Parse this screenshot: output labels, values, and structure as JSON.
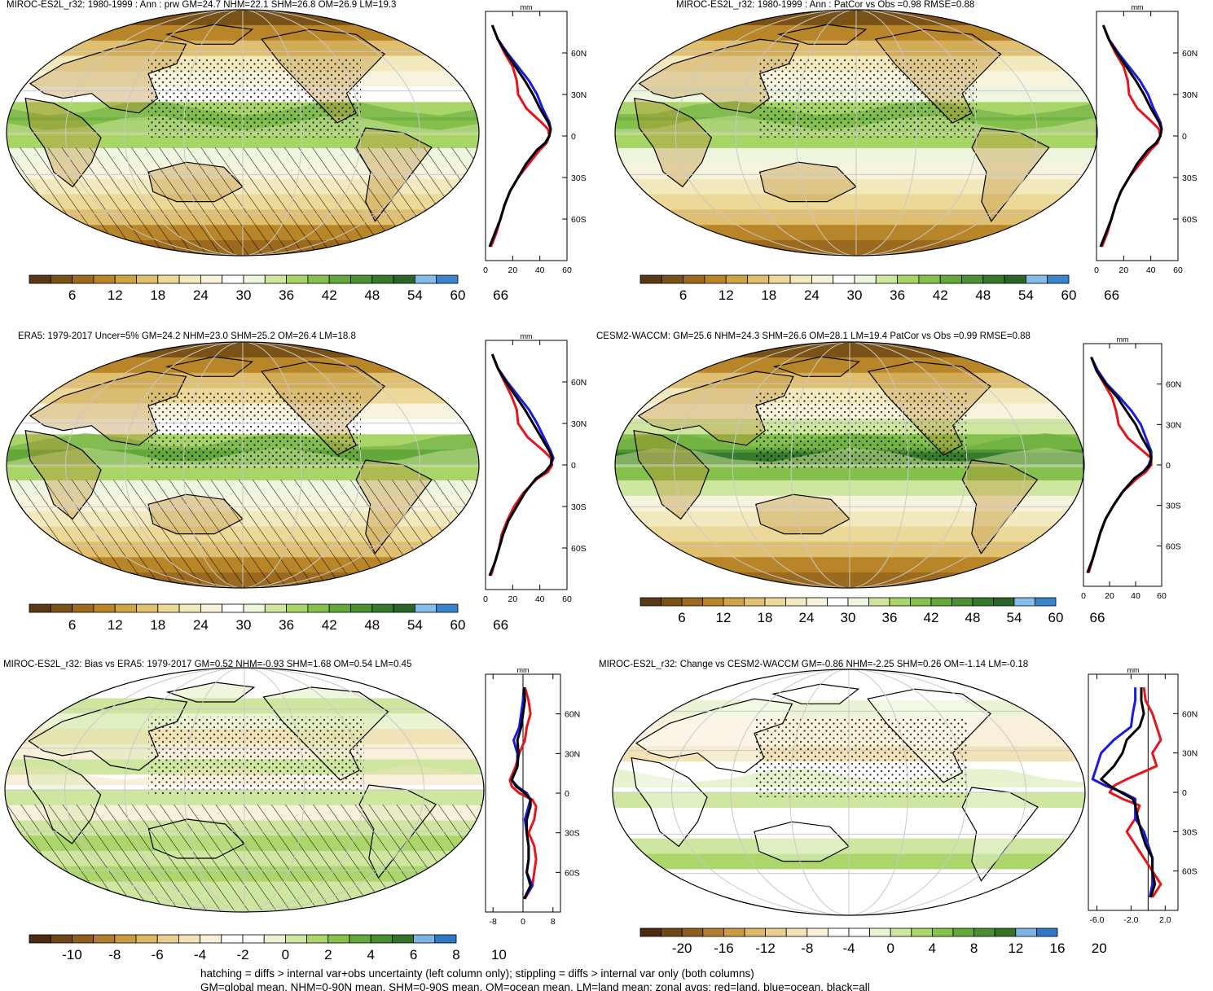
{
  "panels": [
    {
      "title": "MIROC-ES2L_r32: 1980-1999 : Ann : prw GM=24.7 NHM=22.1 SHM=26.8 OM=26.9 LM=19.3",
      "colorbar": {
        "labels": [
          "6",
          "12",
          "18",
          "24",
          "30",
          "36",
          "42",
          "48",
          "54",
          "60",
          "66"
        ]
      },
      "zonal": {
        "unit": "mm",
        "ylabels": [
          "60N",
          "30N",
          "0",
          "30S",
          "60S"
        ],
        "xlabels": [
          "0",
          "20",
          "40",
          "60"
        ]
      }
    },
    {
      "title": "MIROC-ES2L_r32: 1980-1999 : Ann : PatCor vs Obs =0.98 RMSE=0.88",
      "colorbar": {
        "labels": [
          "6",
          "12",
          "18",
          "24",
          "30",
          "36",
          "42",
          "48",
          "54",
          "60",
          "66"
        ]
      },
      "zonal": {
        "unit": "mm",
        "ylabels": [
          "60N",
          "30N",
          "0",
          "30S",
          "60S"
        ],
        "xlabels": [
          "0",
          "20",
          "40",
          "60"
        ]
      }
    },
    {
      "title": "ERA5: 1979-2017 Uncer=5% GM=24.2 NHM=23.0 SHM=25.2 OM=26.4 LM=18.8",
      "colorbar": {
        "labels": [
          "6",
          "12",
          "18",
          "24",
          "30",
          "36",
          "42",
          "48",
          "54",
          "60",
          "66"
        ]
      },
      "zonal": {
        "unit": "mm",
        "ylabels": [
          "60N",
          "30N",
          "0",
          "30S",
          "60S"
        ],
        "xlabels": [
          "0",
          "20",
          "40",
          "60"
        ]
      }
    },
    {
      "title": "CESM2-WACCM: GM=25.6 NHM=24.3 SHM=26.6 OM=28.1 LM=19.4 PatCor vs Obs =0.99 RMSE=0.88",
      "colorbar": {
        "labels": [
          "6",
          "12",
          "18",
          "24",
          "30",
          "36",
          "42",
          "48",
          "54",
          "60",
          "66"
        ]
      },
      "zonal": {
        "unit": "mm",
        "ylabels": [
          "60N",
          "30N",
          "0",
          "30S",
          "60S"
        ],
        "xlabels": [
          "0",
          "20",
          "40",
          "60"
        ]
      }
    },
    {
      "title": "MIROC-ES2L_r32: Bias vs ERA5: 1979-2017 GM=0.52 NHM=-0.93 SHM=1.68 OM=0.54 LM=0.45",
      "colorbar": {
        "labels": [
          "-10",
          "-8",
          "-6",
          "-4",
          "-2",
          "0",
          "2",
          "4",
          "6",
          "8",
          "10"
        ]
      },
      "zonal": {
        "unit": "mm",
        "ylabels": [
          "60N",
          "30N",
          "0",
          "30S",
          "60S"
        ],
        "xlabels": [
          "-8",
          "0",
          "8"
        ]
      }
    },
    {
      "title": "MIROC-ES2L_r32: Change vs CESM2-WACCM GM=-0.86 NHM=-2.25 SHM=0.26 OM=-1.14 LM=-0.18",
      "colorbar": {
        "labels": [
          "-20",
          "-16",
          "-12",
          "-8",
          "-4",
          "0",
          "4",
          "8",
          "12",
          "16",
          "20"
        ]
      },
      "zonal": {
        "unit": "mm",
        "ylabels": [
          "60N",
          "30N",
          "0",
          "30S",
          "60S"
        ],
        "xlabels": [
          "-6.0",
          "-2.0",
          "2.0"
        ]
      }
    }
  ],
  "footer": [
    "hatching = diffs > internal var+obs uncertainty (left column only); stippling = diffs > internal var only (both columns)",
    "GM=global mean, NHM=0-90N mean, SHM=0-90S mean, OM=ocean mean, LM=land mean; zonal avgs: red=land, blue=ocean, black=all"
  ],
  "colors": {
    "land": "#e8141c",
    "ocean": "#1a1ae6",
    "all": "#000000",
    "abs_scale": [
      "#5a3a14",
      "#7a5218",
      "#9b6a1e",
      "#b88628",
      "#cfa446",
      "#e0c070",
      "#ecd898",
      "#f3e9be",
      "#f8f3dc",
      "#ffffff",
      "#eef6e0",
      "#cfe6a0",
      "#a8d468",
      "#84c04c",
      "#64a83c",
      "#4c9034",
      "#387a2c",
      "#2a6426",
      "#85bce8",
      "#3a84cc"
    ],
    "diff_scale": [
      "#4a2c0e",
      "#6e4618",
      "#8e5e20",
      "#b07e2e",
      "#c99c44",
      "#dcb868",
      "#e8cf90",
      "#f1e2b8",
      "#f8f0da",
      "#ffffff",
      "#ffffff",
      "#eaf4d4",
      "#cfe6a0",
      "#acd66c",
      "#86c24c",
      "#64a83c",
      "#4a8e32",
      "#347428",
      "#7cb4e6",
      "#2e78c6"
    ]
  },
  "chart_data": [
    {
      "type": "line",
      "title": "MIROC-ES2L_r32: 1980-1999 : Ann : prw GM=24.7 NHM=22.1 SHM=26.8 OM=26.9 LM=19.3",
      "xlabel": "mm",
      "ylabel": "",
      "xlim": [
        0,
        60
      ],
      "ylim": [
        -90,
        90
      ],
      "y": [
        80,
        70,
        60,
        50,
        40,
        30,
        20,
        10,
        5,
        0,
        -5,
        -10,
        -20,
        -30,
        -40,
        -50,
        -60,
        -70,
        -80
      ],
      "series": [
        {
          "values": [
            5,
            9,
            14,
            20,
            23,
            24,
            30,
            41,
            46,
            47,
            45,
            40,
            32,
            24,
            18,
            14,
            11,
            8,
            4
          ]
        },
        {
          "values": [
            5,
            9,
            16,
            24,
            32,
            38,
            42,
            47,
            48,
            47,
            44,
            38,
            30,
            24,
            18,
            14,
            11,
            7,
            3
          ]
        },
        {
          "values": [
            5,
            9,
            15,
            22,
            29,
            35,
            40,
            46,
            48,
            47,
            44,
            38,
            30,
            24,
            18,
            14,
            11,
            7,
            3
          ]
        }
      ]
    },
    {
      "type": "line",
      "title": "MIROC-ES2L_r32: 1980-1999 : Ann : PatCor vs Obs =0.98 RMSE=0.88",
      "xlabel": "mm",
      "ylabel": "",
      "xlim": [
        0,
        60
      ],
      "ylim": [
        -90,
        90
      ],
      "y": [
        80,
        70,
        60,
        50,
        40,
        30,
        20,
        10,
        5,
        0,
        -5,
        -10,
        -20,
        -30,
        -40,
        -50,
        -60,
        -70,
        -80
      ],
      "series": [
        {
          "values": [
            5,
            9,
            14,
            20,
            23,
            24,
            30,
            41,
            46,
            47,
            45,
            40,
            32,
            24,
            18,
            14,
            11,
            8,
            4
          ]
        },
        {
          "values": [
            5,
            9,
            16,
            24,
            32,
            38,
            42,
            47,
            48,
            47,
            44,
            38,
            30,
            24,
            18,
            14,
            11,
            7,
            3
          ]
        },
        {
          "values": [
            5,
            9,
            15,
            22,
            29,
            35,
            40,
            46,
            48,
            47,
            44,
            38,
            30,
            24,
            18,
            14,
            11,
            7,
            3
          ]
        }
      ]
    },
    {
      "type": "line",
      "title": "ERA5: 1979-2017 Uncer=5% GM=24.2 NHM=23.0 SHM=25.2 OM=26.4 LM=18.8",
      "xlabel": "mm",
      "ylabel": "",
      "xlim": [
        0,
        60
      ],
      "ylim": [
        -90,
        90
      ],
      "y": [
        80,
        70,
        60,
        50,
        40,
        30,
        20,
        10,
        5,
        0,
        -5,
        -10,
        -20,
        -30,
        -40,
        -50,
        -60,
        -70,
        -80
      ],
      "series": [
        {
          "values": [
            5,
            9,
            14,
            19,
            23,
            24,
            31,
            43,
            48,
            49,
            46,
            38,
            28,
            21,
            16,
            12,
            10,
            7,
            4
          ]
        },
        {
          "values": [
            5,
            9,
            16,
            24,
            32,
            38,
            43,
            48,
            50,
            48,
            44,
            37,
            29,
            23,
            17,
            13,
            10,
            7,
            3
          ]
        },
        {
          "values": [
            5,
            9,
            15,
            22,
            29,
            35,
            41,
            47,
            49,
            48,
            44,
            37,
            29,
            23,
            17,
            13,
            10,
            7,
            3
          ]
        }
      ]
    },
    {
      "type": "line",
      "title": "CESM2-WACCM: GM=25.6 NHM=24.3 SHM=26.6 OM=28.1 LM=19.4 PatCor vs Obs =0.99 RMSE=0.88",
      "xlabel": "mm",
      "ylabel": "",
      "xlim": [
        0,
        60
      ],
      "ylim": [
        -90,
        90
      ],
      "y": [
        80,
        70,
        60,
        50,
        40,
        30,
        20,
        10,
        5,
        0,
        -5,
        -10,
        -20,
        -30,
        -40,
        -50,
        -60,
        -70,
        -80
      ],
      "series": [
        {
          "values": [
            6,
            10,
            16,
            22,
            25,
            27,
            34,
            46,
            52,
            52,
            48,
            41,
            30,
            23,
            17,
            13,
            10,
            7,
            4
          ]
        },
        {
          "values": [
            6,
            11,
            18,
            28,
            37,
            44,
            48,
            52,
            52,
            50,
            46,
            39,
            30,
            23,
            17,
            13,
            10,
            7,
            3
          ]
        },
        {
          "values": [
            6,
            10,
            17,
            26,
            33,
            40,
            45,
            51,
            52,
            51,
            46,
            39,
            30,
            23,
            17,
            13,
            10,
            7,
            3
          ]
        }
      ]
    },
    {
      "type": "line",
      "title": "MIROC-ES2L_r32: Bias vs ERA5: 1979-2017 GM=0.52 NHM=-0.93 SHM=1.68 OM=0.54 LM=0.45",
      "xlabel": "mm",
      "ylabel": "",
      "xlim": [
        -10,
        10
      ],
      "ylim": [
        -90,
        90
      ],
      "y": [
        80,
        70,
        60,
        50,
        40,
        30,
        20,
        10,
        5,
        0,
        -5,
        -10,
        -20,
        -30,
        -40,
        -50,
        -60,
        -70,
        -80
      ],
      "series": [
        {
          "values": [
            0.5,
            1.5,
            2.0,
            1.0,
            0.5,
            -1.0,
            -2.0,
            -3.5,
            -3.0,
            -1.0,
            2.5,
            3.5,
            3.0,
            1.5,
            3.0,
            3.5,
            3.0,
            2.5,
            0.5
          ]
        },
        {
          "values": [
            0.2,
            0.0,
            -0.5,
            -1.0,
            -2.5,
            -1.5,
            -1.5,
            -3.0,
            -1.5,
            1.0,
            2.0,
            1.5,
            0.5,
            1.0,
            1.5,
            1.5,
            1.0,
            2.5,
            0.3
          ]
        },
        {
          "values": [
            0.3,
            0.5,
            0.0,
            -0.5,
            -1.5,
            -1.2,
            -1.5,
            -3.0,
            -1.8,
            0.5,
            2.0,
            2.0,
            1.0,
            1.0,
            1.5,
            1.5,
            1.0,
            2.0,
            0.3
          ]
        }
      ]
    },
    {
      "type": "line",
      "title": "MIROC-ES2L_r32: Change vs CESM2-WACCM GM=-0.86 NHM=-2.25 SHM=0.26 OM=-1.14 LM=-0.18",
      "xlabel": "mm",
      "ylabel": "",
      "xlim": [
        -7,
        3.5
      ],
      "ylim": [
        -90,
        90
      ],
      "y": [
        80,
        70,
        60,
        50,
        40,
        30,
        20,
        10,
        5,
        0,
        -5,
        -10,
        -20,
        -30,
        -40,
        -50,
        -60,
        -70,
        -80
      ],
      "series": [
        {
          "values": [
            -0.5,
            -0.3,
            0.5,
            1.0,
            1.5,
            0.5,
            1.0,
            -2.5,
            -4.0,
            -4.5,
            -3.0,
            -1.0,
            -1.5,
            -2.5,
            -1.5,
            -0.5,
            0.5,
            1.5,
            0.5
          ]
        },
        {
          "values": [
            -1.5,
            -1.5,
            -1.8,
            -2.0,
            -4.0,
            -5.5,
            -6.0,
            -6.5,
            -5.0,
            -3.0,
            -1.5,
            -1.5,
            -1.5,
            -0.5,
            0.0,
            0.5,
            0.5,
            0.5,
            0.2
          ]
        },
        {
          "values": [
            -0.8,
            -0.8,
            -0.5,
            -1.0,
            -2.5,
            -3.0,
            -4.0,
            -5.5,
            -4.5,
            -3.2,
            -1.8,
            -1.5,
            -1.2,
            -0.8,
            -0.3,
            0.5,
            0.5,
            0.8,
            0.3
          ]
        }
      ]
    }
  ]
}
